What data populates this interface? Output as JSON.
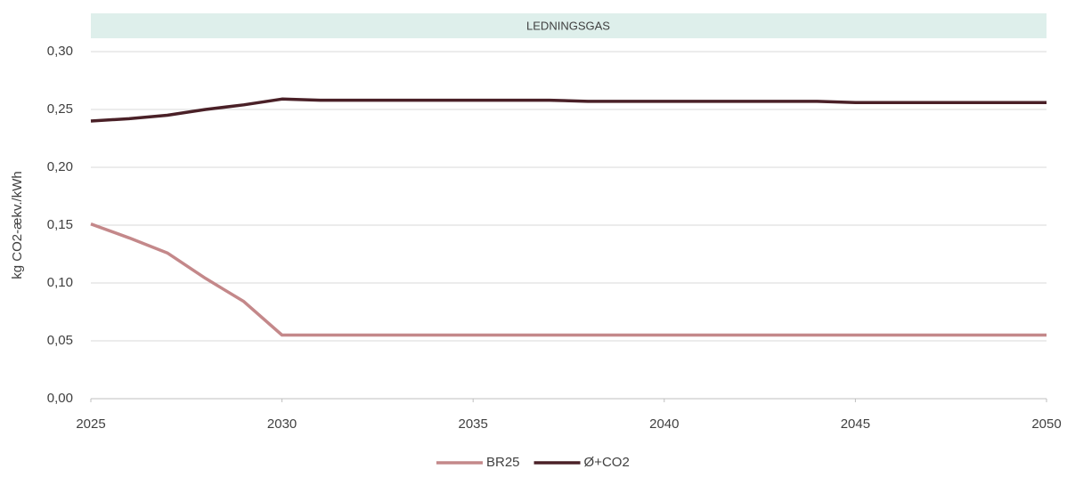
{
  "chart_data": {
    "type": "line",
    "title": "LEDNINGSGAS",
    "y_label": "kg CO2-ækv./kWh",
    "x": [
      2025,
      2026,
      2027,
      2028,
      2029,
      2030,
      2031,
      2032,
      2033,
      2034,
      2035,
      2036,
      2037,
      2038,
      2039,
      2040,
      2041,
      2042,
      2043,
      2044,
      2045,
      2046,
      2047,
      2048,
      2049,
      2050
    ],
    "series": [
      {
        "name": "BR25",
        "color": "#c4888a",
        "values": [
          0.151,
          0.139,
          0.126,
          0.104,
          0.084,
          0.055,
          0.055,
          0.055,
          0.055,
          0.055,
          0.055,
          0.055,
          0.055,
          0.055,
          0.055,
          0.055,
          0.055,
          0.055,
          0.055,
          0.055,
          0.055,
          0.055,
          0.055,
          0.055,
          0.055,
          0.055
        ]
      },
      {
        "name": "Ø+CO2",
        "color": "#4a2027",
        "values": [
          0.24,
          0.242,
          0.245,
          0.25,
          0.254,
          0.259,
          0.258,
          0.258,
          0.258,
          0.258,
          0.258,
          0.258,
          0.258,
          0.257,
          0.257,
          0.257,
          0.257,
          0.257,
          0.257,
          0.257,
          0.256,
          0.256,
          0.256,
          0.256,
          0.256,
          0.256
        ]
      }
    ],
    "xlim": [
      2025,
      2050
    ],
    "xticks": [
      2025,
      2030,
      2035,
      2040,
      2045,
      2050
    ],
    "ylim": [
      0,
      0.3
    ],
    "yticks": [
      {
        "value": 0,
        "label": "0,00"
      },
      {
        "value": 0.05,
        "label": "0,05"
      },
      {
        "value": 0.1,
        "label": "0,10"
      },
      {
        "value": 0.15,
        "label": "0,15"
      },
      {
        "value": 0.2,
        "label": "0,20"
      },
      {
        "value": 0.25,
        "label": "0,25"
      },
      {
        "value": 0.3,
        "label": "0,30"
      }
    ],
    "grid": true,
    "legend": "bottom"
  }
}
